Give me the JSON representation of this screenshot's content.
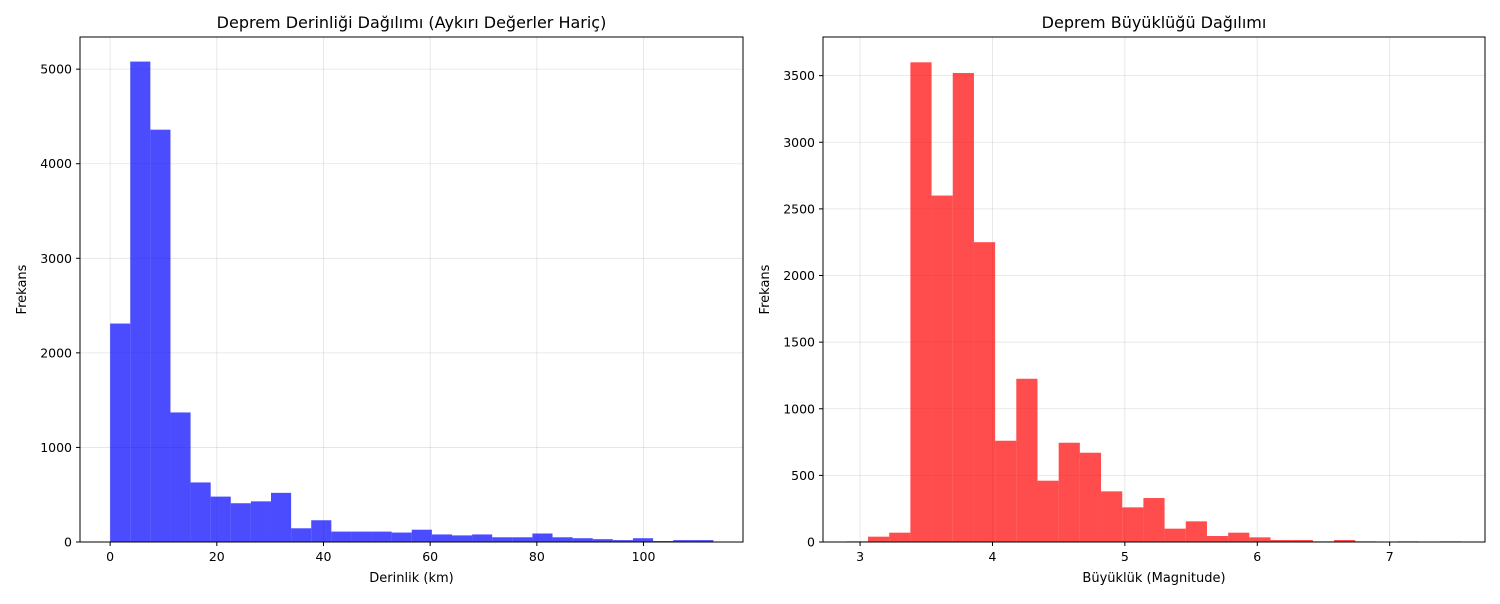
{
  "chart_data": [
    {
      "type": "bar",
      "title": "Deprem Derinliği Dağılımı (Aykırı Değerler Hariç)",
      "xlabel": "Derinlik (km)",
      "ylabel": "Frekans",
      "xlim": [
        -5.65,
        118.65
      ],
      "ylim": [
        0,
        5340
      ],
      "xticks": [
        0,
        20,
        40,
        60,
        80,
        100
      ],
      "yticks": [
        0,
        1000,
        2000,
        3000,
        4000,
        5000
      ],
      "grid": true,
      "color": "#0000ff",
      "alpha": 0.7,
      "bin_start": 0,
      "bin_width": 3.77,
      "values": [
        2310,
        5080,
        4360,
        1370,
        630,
        480,
        410,
        430,
        520,
        145,
        230,
        110,
        110,
        110,
        100,
        130,
        80,
        70,
        80,
        50,
        50,
        90,
        50,
        40,
        30,
        20,
        40,
        10,
        20,
        20
      ]
    },
    {
      "type": "bar",
      "title": "Deprem Büyüklüğü Dağılımı",
      "xlabel": "Büyüklük (Magnitude)",
      "ylabel": "Frekans",
      "xlim": [
        2.72,
        7.72
      ],
      "ylim": [
        0,
        3790
      ],
      "xticks": [
        3,
        4,
        5,
        6,
        7
      ],
      "yticks": [
        0,
        500,
        1000,
        1500,
        2000,
        2500,
        3000,
        3500
      ],
      "grid": true,
      "color": "#ff0000",
      "alpha": 0.7,
      "bin_start": 2.9,
      "bin_width": 0.16,
      "values": [
        5,
        40,
        70,
        3600,
        2600,
        3520,
        2250,
        760,
        1225,
        460,
        745,
        670,
        380,
        260,
        330,
        100,
        155,
        45,
        70,
        35,
        15,
        15,
        5,
        15,
        5,
        2,
        5,
        2,
        5,
        2
      ]
    }
  ]
}
